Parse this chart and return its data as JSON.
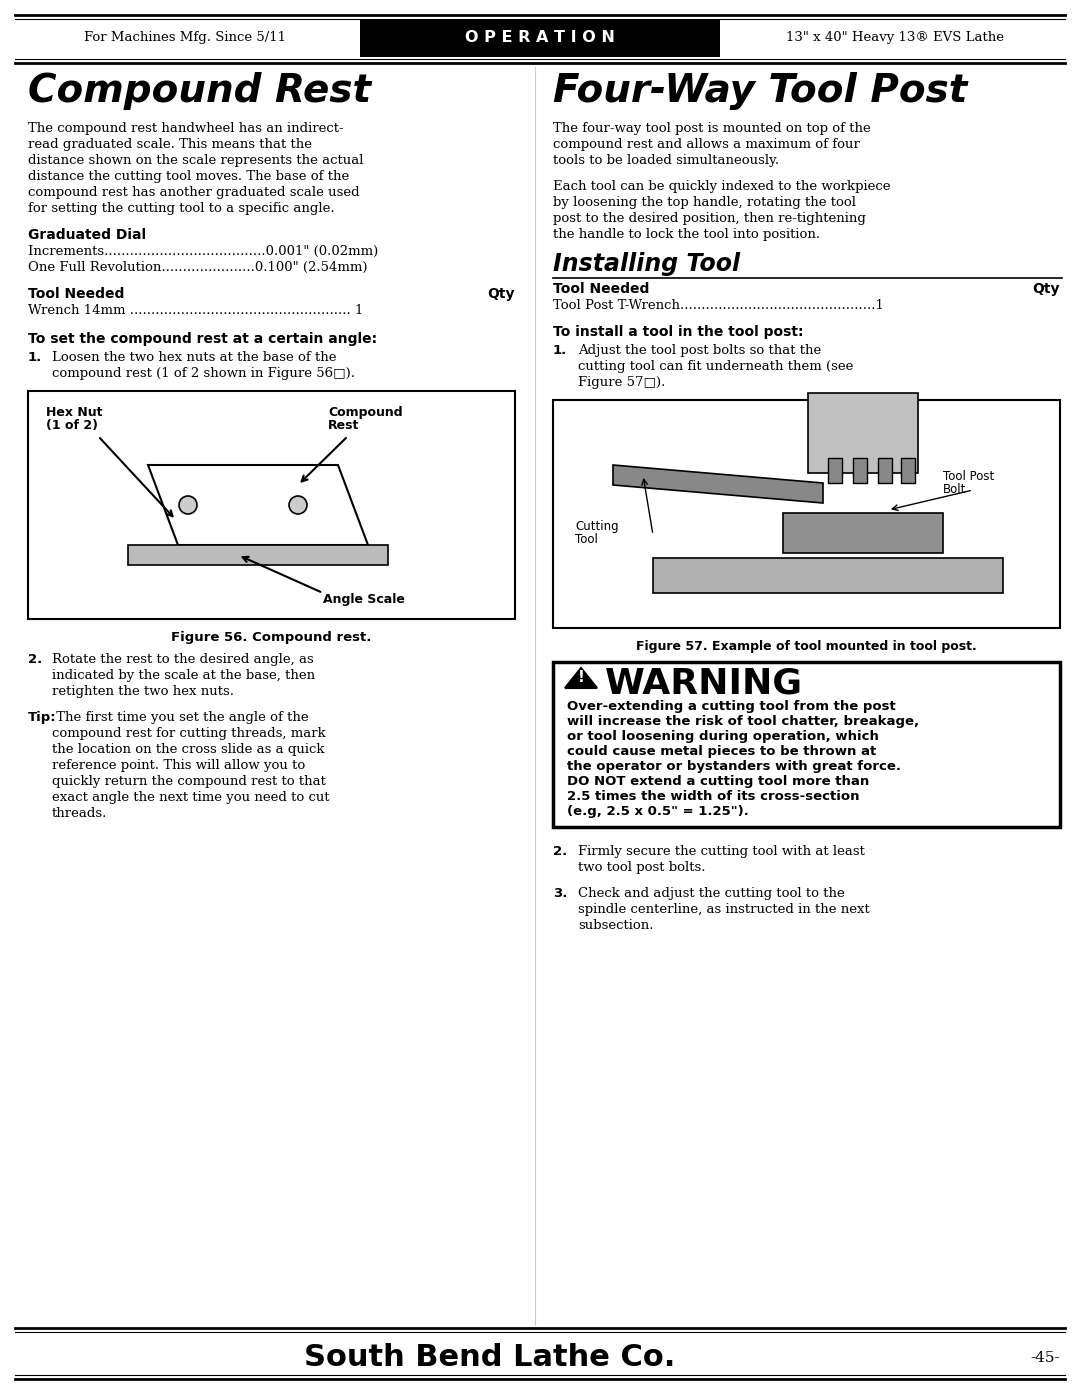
{
  "page_width": 10.8,
  "page_height": 13.97,
  "background_color": "#ffffff",
  "header": {
    "left_text": "For Machines Mfg. Since 5/11",
    "center_text": "O P E R A T I O N",
    "right_text": "13\" x 40\" Heavy 13® EVS Lathe",
    "bg_color": "#000000",
    "text_color_center": "#ffffff",
    "text_color_sides": "#000000",
    "bar_color": "#000000"
  },
  "footer": {
    "company": "South Bend Lathe Co.",
    "page_num": "-45-",
    "bar_color": "#000000"
  },
  "left_column": {
    "title": "Compound Rest",
    "body1": "The compound rest handwheel has an indirect-\nread graduated scale. This means that the\ndistance shown on the scale represents the actual\ndistance the cutting tool moves. The base of the\ncompound rest has another graduated scale used\nfor setting the cutting tool to a specific angle.",
    "section1_title": "Graduated Dial",
    "section1_lines": [
      "Increments......................................0.001\" (0.02mm)",
      "One Full Revolution......................0.100\" (2.54mm)"
    ],
    "section2_title": "Tool Needed",
    "section2_qty": "Qty",
    "section2_lines": [
      "Wrench 14mm .................................................... 1"
    ],
    "section3_title": "To set the compound rest at a certain angle:",
    "step1": "Loosen the two hex nuts at the base of the\ncompound rest (1 of 2 shown in Figure 56□).",
    "fig1_caption": "Figure 56. Compound rest.",
    "step2": "Rotate the rest to the desired angle, as\nindicated by the scale at the base, then\nretighten the two hex nuts.",
    "tip_label": "Tip:",
    "tip_body": " The first time you set the angle of the\ncompound rest for cutting threads, mark\nthe location on the cross slide as a quick\nreference point. This will allow you to\nquickly return the compound rest to that\nexact angle the next time you need to cut\nthreads."
  },
  "right_column": {
    "title": "Four-Way Tool Post",
    "body1": "The four-way tool post is mounted on top of the\ncompound rest and allows a maximum of four\ntools to be loaded simultaneously.",
    "body2": "Each tool can be quickly indexed to the workpiece\nby loosening the top handle, rotating the tool\npost to the desired position, then re-tightening\nthe handle to lock the tool into position.",
    "section1_title": "Installing Tool",
    "tool_needed_label": "Tool Needed",
    "tool_needed_qty": "Qty",
    "tool_needed_lines": [
      "Tool Post T-Wrench..............................................1"
    ],
    "step_title": "To install a tool in the tool post:",
    "step1": "Adjust the tool post bolts so that the\ncutting tool can fit underneath them (see\nFigure 57□).",
    "fig2_caption": "Figure 57. Example of tool mounted in tool post.",
    "warning_title": "⚠WARNING",
    "warning_body_normal": "Over-extending a cutting tool from the post\nwill increase the risk of tool chatter, breakage,\nor tool loosening during operation, which\ncould cause metal pieces to be thrown at\nthe operator or bystanders with great force.\nDO NOT extend a cutting tool more than\n2.5 times the width of its cross-section\n(e.g, 2.5 x 0.5\" = 1.25\").",
    "step2": "Firmly secure the cutting tool with at least\ntwo tool post bolts.",
    "step3": "Check and adjust the cutting tool to the\nspindle centerline, as instructed in the next\nsubsection."
  }
}
